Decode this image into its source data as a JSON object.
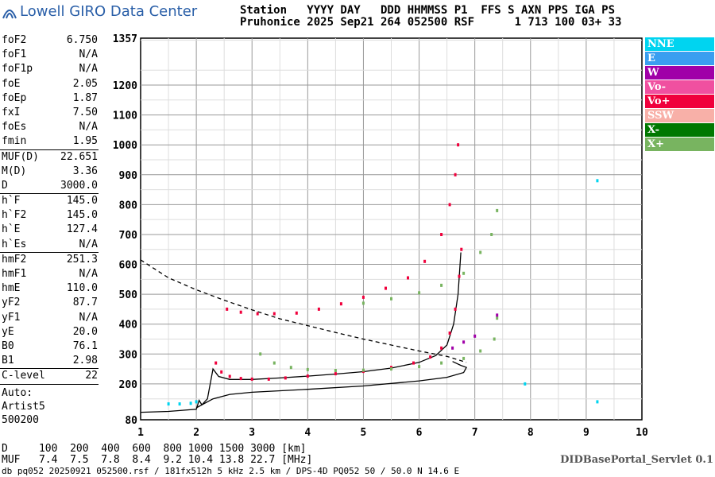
{
  "header": {
    "logo_text": "Lowell GIRO Data Center",
    "row1": "Station   YYYY DAY   DDD HHMMSS P1  FFS S AXN PPS IGA PS",
    "row2": "Pruhonice 2025 Sep21 264 052500 RSF      1 713 100 03+ 33"
  },
  "params": {
    "group1": [
      {
        "label": "foF2",
        "value": "6.750"
      },
      {
        "label": "foF1",
        "value": "N/A"
      },
      {
        "label": "foF1p",
        "value": "N/A"
      },
      {
        "label": "foE",
        "value": "2.05"
      },
      {
        "label": "foEp",
        "value": "1.87"
      },
      {
        "label": "fxI",
        "value": "7.50"
      },
      {
        "label": "foEs",
        "value": "N/A"
      },
      {
        "label": "fmin",
        "value": "1.95"
      }
    ],
    "group2": [
      {
        "label": "MUF(D)",
        "value": "22.651"
      },
      {
        "label": "M(D)",
        "value": "3.36"
      },
      {
        "label": "D",
        "value": "3000.0"
      }
    ],
    "group3": [
      {
        "label": "h`F",
        "value": "145.0"
      },
      {
        "label": "h`F2",
        "value": "145.0"
      },
      {
        "label": "h`E",
        "value": "127.4"
      },
      {
        "label": "h`Es",
        "value": "N/A"
      }
    ],
    "group4": [
      {
        "label": "hmF2",
        "value": "251.3"
      },
      {
        "label": "hmF1",
        "value": "N/A"
      },
      {
        "label": "hmE",
        "value": "110.0"
      },
      {
        "label": "yF2",
        "value": "87.7"
      },
      {
        "label": "yF1",
        "value": "N/A"
      },
      {
        "label": "yE",
        "value": "20.0"
      },
      {
        "label": "B0",
        "value": "76.1"
      },
      {
        "label": "B1",
        "value": "2.98"
      }
    ],
    "group5": [
      {
        "label": "C-level",
        "value": "22"
      }
    ],
    "auto": [
      "Auto:",
      "Artist5",
      "500200"
    ]
  },
  "legend": [
    {
      "label": "NNE",
      "color": "#00d4f0"
    },
    {
      "label": "E",
      "color": "#3a9ef0"
    },
    {
      "label": "W",
      "color": "#a000a8"
    },
    {
      "label": "Vo-",
      "color": "#f050a0"
    },
    {
      "label": "Vo+",
      "color": "#f0003c"
    },
    {
      "label": "SSW",
      "color": "#f8b0a8"
    },
    {
      "label": "X-",
      "color": "#007800"
    },
    {
      "label": "X+",
      "color": "#78b460"
    }
  ],
  "bottom": {
    "d_row": "D     100  200  400  600  800 1000 1500 3000 [km]",
    "muf_row": "MUF   7.4  7.5  7.8  8.4  9.2 10.4 13.8 22.7 [MHz]",
    "footer": "db pq052 20250921 052500.rsf / 181fx512h 5 kHz 2.5 km / DPS-4D PQ052 50 / 50.0 N 14.6 E",
    "servlet": "DIDBasePortal_Servlet 0.1"
  },
  "chart_data": {
    "type": "scatter",
    "xlim": [
      1,
      10
    ],
    "ylim": [
      80,
      1357
    ],
    "x_ticks": [
      "1",
      "2",
      "3",
      "4",
      "5",
      "6",
      "7",
      "8",
      "9",
      "10"
    ],
    "y_ticks": [
      "80",
      "200",
      "300",
      "400",
      "500",
      "600",
      "700",
      "800",
      "900",
      "1000",
      "1100",
      "1200",
      "1357"
    ],
    "grid": true,
    "traces": [
      {
        "name": "Vo+",
        "color": "#f0003c",
        "points": [
          [
            2.35,
            270
          ],
          [
            2.45,
            240
          ],
          [
            2.6,
            225
          ],
          [
            2.8,
            218
          ],
          [
            3.0,
            216
          ],
          [
            3.3,
            216
          ],
          [
            3.6,
            220
          ],
          [
            4.0,
            226
          ],
          [
            4.5,
            234
          ],
          [
            5.0,
            242
          ],
          [
            5.5,
            255
          ],
          [
            5.9,
            270
          ],
          [
            6.2,
            290
          ],
          [
            6.4,
            320
          ],
          [
            6.55,
            370
          ],
          [
            6.65,
            450
          ],
          [
            6.72,
            560
          ],
          [
            6.76,
            650
          ],
          [
            2.55,
            450
          ],
          [
            2.8,
            440
          ],
          [
            3.1,
            435
          ],
          [
            3.4,
            435
          ],
          [
            3.8,
            437
          ],
          [
            4.2,
            450
          ],
          [
            4.6,
            468
          ],
          [
            5.0,
            490
          ],
          [
            5.4,
            520
          ],
          [
            5.8,
            555
          ],
          [
            6.1,
            610
          ],
          [
            6.4,
            700
          ],
          [
            6.55,
            800
          ],
          [
            6.65,
            900
          ],
          [
            6.7,
            1000
          ]
        ]
      },
      {
        "name": "X+",
        "color": "#78b460",
        "points": [
          [
            3.15,
            300
          ],
          [
            3.4,
            270
          ],
          [
            3.7,
            255
          ],
          [
            4.0,
            248
          ],
          [
            4.5,
            245
          ],
          [
            5.0,
            246
          ],
          [
            5.5,
            250
          ],
          [
            6.0,
            258
          ],
          [
            6.4,
            270
          ],
          [
            6.8,
            285
          ],
          [
            7.1,
            310
          ],
          [
            7.35,
            350
          ],
          [
            7.4,
            420
          ],
          [
            5.0,
            470
          ],
          [
            5.5,
            485
          ],
          [
            6.0,
            505
          ],
          [
            6.4,
            530
          ],
          [
            6.8,
            570
          ],
          [
            7.1,
            640
          ],
          [
            7.3,
            700
          ],
          [
            7.4,
            780
          ]
        ]
      },
      {
        "name": "W",
        "color": "#a000a8",
        "points": [
          [
            6.6,
            320
          ],
          [
            6.8,
            340
          ],
          [
            7.0,
            360
          ],
          [
            7.4,
            430
          ]
        ]
      },
      {
        "name": "NNE",
        "color": "#00d4f0",
        "points": [
          [
            1.5,
            133
          ],
          [
            1.7,
            133
          ],
          [
            1.9,
            135
          ],
          [
            2.0,
            140
          ],
          [
            7.9,
            200
          ],
          [
            9.2,
            140
          ],
          [
            9.2,
            880
          ]
        ]
      }
    ],
    "curves": [
      {
        "name": "ordinary-model",
        "style": "solid",
        "points": [
          [
            1.0,
            105
          ],
          [
            1.5,
            108
          ],
          [
            2.0,
            115
          ],
          [
            2.05,
            145
          ],
          [
            2.1,
            130
          ],
          [
            2.2,
            150
          ],
          [
            2.3,
            250
          ],
          [
            2.4,
            225
          ],
          [
            2.6,
            215
          ],
          [
            3.0,
            215
          ],
          [
            3.5,
            220
          ],
          [
            4.0,
            226
          ],
          [
            4.5,
            233
          ],
          [
            5.0,
            241
          ],
          [
            5.5,
            253
          ],
          [
            6.0,
            272
          ],
          [
            6.3,
            295
          ],
          [
            6.5,
            330
          ],
          [
            6.62,
            400
          ],
          [
            6.7,
            500
          ],
          [
            6.75,
            640
          ]
        ]
      },
      {
        "name": "virtual-lower",
        "style": "solid",
        "points": [
          [
            2.0,
            120
          ],
          [
            2.3,
            150
          ],
          [
            2.6,
            165
          ],
          [
            3.0,
            172
          ],
          [
            4.0,
            182
          ],
          [
            5.0,
            193
          ],
          [
            6.0,
            210
          ],
          [
            6.5,
            222
          ],
          [
            6.8,
            238
          ],
          [
            6.85,
            255
          ],
          [
            6.75,
            262
          ],
          [
            6.6,
            275
          ]
        ]
      },
      {
        "name": "dashed-model",
        "style": "dashed",
        "points": [
          [
            1.0,
            615
          ],
          [
            1.5,
            555
          ],
          [
            2.0,
            515
          ],
          [
            2.5,
            480
          ],
          [
            3.0,
            448
          ],
          [
            3.5,
            418
          ],
          [
            4.0,
            395
          ],
          [
            4.5,
            372
          ],
          [
            5.0,
            350
          ],
          [
            5.5,
            330
          ],
          [
            6.0,
            310
          ],
          [
            6.5,
            292
          ],
          [
            6.85,
            272
          ]
        ]
      }
    ]
  }
}
